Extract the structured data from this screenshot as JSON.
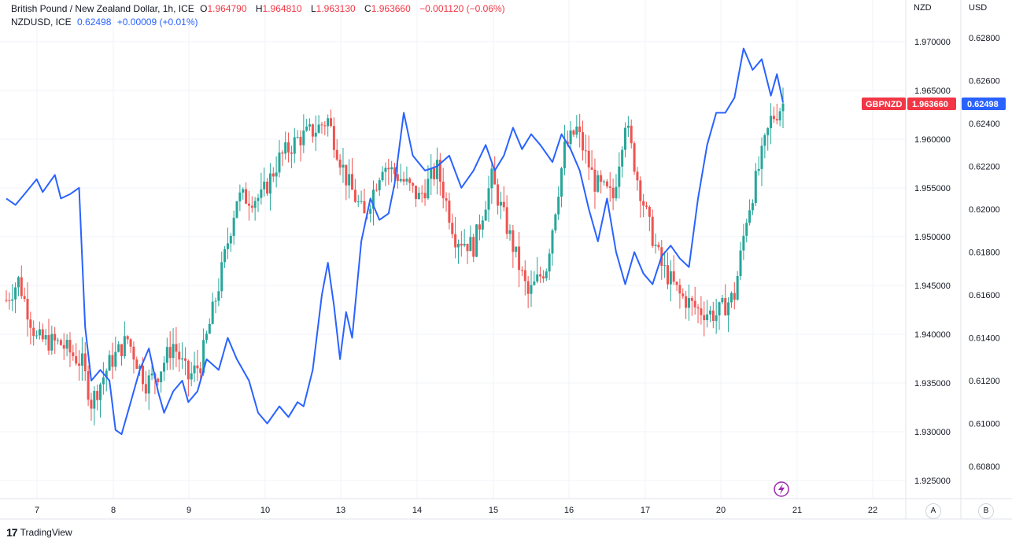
{
  "legend": {
    "main_title": "British Pound / New Zealand Dollar, 1h, ICE",
    "o_label": "O",
    "o_value": "1.964790",
    "h_label": "H",
    "h_value": "1.964810",
    "l_label": "L",
    "l_value": "1.963130",
    "c_label": "C",
    "c_value": "1.963660",
    "change": "−0.001120 (−0.06%)",
    "compare_title": "NZDUSD, ICE",
    "compare_value": "0.62498",
    "compare_change": "+0.00009 (+0.01%)"
  },
  "axes": {
    "left_axis_title": "NZD",
    "right_axis_title": "USD",
    "btn_a": "A",
    "btn_b": "B"
  },
  "badges": {
    "gbpnzd_label": "GBPNZD",
    "gbpnzd_value": "1.963660",
    "nzdusd_value": "0.62498"
  },
  "footer": {
    "brand": "TradingView",
    "logo_icon": "tradingview-logo-icon"
  },
  "colors": {
    "up": "#26a69a",
    "down": "#ef5350",
    "compare": "#2962ff",
    "badge_red": "#f23645",
    "grid": "#f0f3fa"
  },
  "chart_data": {
    "type": "candlestick+line",
    "x_ticks": [
      "7",
      "8",
      "9",
      "10",
      "13",
      "14",
      "15",
      "16",
      "17",
      "20",
      "21",
      "22"
    ],
    "nzd_axis": {
      "ticks": [
        "1.970000",
        "1.965000",
        "1.960000",
        "1.955000",
        "1.950000",
        "1.945000",
        "1.940000",
        "1.935000",
        "1.930000",
        "1.925000"
      ],
      "range": [
        1.9235,
        1.9715
      ]
    },
    "usd_axis": {
      "ticks": [
        "0.62800",
        "0.62600",
        "0.62400",
        "0.62200",
        "0.62000",
        "0.61800",
        "0.61600",
        "0.61400",
        "0.61200",
        "0.61000",
        "0.60800"
      ],
      "range": [
        0.6075,
        0.6286
      ]
    },
    "series": [
      {
        "name": "GBPNZD",
        "kind": "candles",
        "anchors": [
          [
            0,
            1.9435
          ],
          [
            4,
            1.9455
          ],
          [
            10,
            1.9395
          ],
          [
            18,
            1.939
          ],
          [
            25,
            1.937
          ],
          [
            28,
            1.933
          ],
          [
            34,
            1.937
          ],
          [
            40,
            1.9395
          ],
          [
            46,
            1.935
          ],
          [
            50,
            1.936
          ],
          [
            55,
            1.939
          ],
          [
            60,
            1.9355
          ],
          [
            64,
            1.937
          ],
          [
            70,
            1.945
          ],
          [
            76,
            1.954
          ],
          [
            84,
            1.954
          ],
          [
            90,
            1.958
          ],
          [
            96,
            1.96
          ],
          [
            102,
            1.961
          ],
          [
            106,
            1.962
          ],
          [
            112,
            1.956
          ],
          [
            118,
            1.952
          ],
          [
            124,
            1.9575
          ],
          [
            130,
            1.956
          ],
          [
            136,
            1.954
          ],
          [
            142,
            1.957
          ],
          [
            148,
            1.95
          ],
          [
            154,
            1.949
          ],
          [
            160,
            1.956
          ],
          [
            166,
            1.95
          ],
          [
            172,
            1.944
          ],
          [
            178,
            1.947
          ],
          [
            184,
            1.959
          ],
          [
            188,
            1.961
          ],
          [
            194,
            1.9555
          ],
          [
            200,
            1.954
          ],
          [
            204,
            1.962
          ],
          [
            208,
            1.956
          ],
          [
            212,
            1.951
          ],
          [
            216,
            1.947
          ],
          [
            222,
            1.944
          ],
          [
            228,
            1.9425
          ],
          [
            234,
            1.942
          ],
          [
            240,
            1.944
          ],
          [
            244,
            1.952
          ],
          [
            248,
            1.957
          ],
          [
            252,
            1.962
          ],
          [
            256,
            1.9636
          ]
        ],
        "last_close": 1.96366
      },
      {
        "name": "NZDUSD",
        "kind": "line",
        "points": [
          [
            0,
            0.6205
          ],
          [
            3,
            0.6202
          ],
          [
            6,
            0.6207
          ],
          [
            10,
            0.6214
          ],
          [
            12,
            0.6208
          ],
          [
            16,
            0.6216
          ],
          [
            18,
            0.6205
          ],
          [
            21,
            0.6207
          ],
          [
            24,
            0.621
          ],
          [
            26,
            0.6145
          ],
          [
            28,
            0.612
          ],
          [
            31,
            0.6125
          ],
          [
            34,
            0.612
          ],
          [
            36,
            0.6097
          ],
          [
            38,
            0.6095
          ],
          [
            41,
            0.611
          ],
          [
            44,
            0.6125
          ],
          [
            47,
            0.6135
          ],
          [
            50,
            0.6115
          ],
          [
            52,
            0.6105
          ],
          [
            55,
            0.6115
          ],
          [
            58,
            0.612
          ],
          [
            60,
            0.611
          ],
          [
            63,
            0.6115
          ],
          [
            66,
            0.613
          ],
          [
            70,
            0.6125
          ],
          [
            73,
            0.614
          ],
          [
            76,
            0.613
          ],
          [
            80,
            0.612
          ],
          [
            83,
            0.6105
          ],
          [
            86,
            0.61
          ],
          [
            90,
            0.6108
          ],
          [
            93,
            0.6103
          ],
          [
            96,
            0.611
          ],
          [
            98,
            0.6108
          ],
          [
            101,
            0.6125
          ],
          [
            104,
            0.616
          ],
          [
            106,
            0.6175
          ],
          [
            108,
            0.6155
          ],
          [
            110,
            0.613
          ],
          [
            112,
            0.6152
          ],
          [
            114,
            0.614
          ],
          [
            117,
            0.6185
          ],
          [
            120,
            0.6205
          ],
          [
            123,
            0.6195
          ],
          [
            126,
            0.6198
          ],
          [
            128,
            0.6212
          ],
          [
            131,
            0.6245
          ],
          [
            134,
            0.6225
          ],
          [
            138,
            0.6218
          ],
          [
            142,
            0.622
          ],
          [
            146,
            0.6225
          ],
          [
            150,
            0.621
          ],
          [
            154,
            0.6218
          ],
          [
            158,
            0.623
          ],
          [
            161,
            0.6218
          ],
          [
            164,
            0.6225
          ],
          [
            167,
            0.6238
          ],
          [
            170,
            0.6228
          ],
          [
            173,
            0.6235
          ],
          [
            176,
            0.623
          ],
          [
            180,
            0.6222
          ],
          [
            183,
            0.6235
          ],
          [
            186,
            0.6228
          ],
          [
            189,
            0.6218
          ],
          [
            192,
            0.62
          ],
          [
            195,
            0.6185
          ],
          [
            198,
            0.6205
          ],
          [
            201,
            0.618
          ],
          [
            204,
            0.6165
          ],
          [
            207,
            0.618
          ],
          [
            210,
            0.617
          ],
          [
            213,
            0.6165
          ],
          [
            216,
            0.6178
          ],
          [
            219,
            0.6183
          ],
          [
            222,
            0.6177
          ],
          [
            225,
            0.6173
          ],
          [
            228,
            0.6205
          ],
          [
            231,
            0.623
          ],
          [
            234,
            0.6245
          ],
          [
            237,
            0.6245
          ],
          [
            240,
            0.6252
          ],
          [
            243,
            0.6275
          ],
          [
            246,
            0.6265
          ],
          [
            249,
            0.627
          ],
          [
            252,
            0.6253
          ],
          [
            254,
            0.6263
          ],
          [
            256,
            0.62498
          ]
        ],
        "last_value": 0.62498
      }
    ]
  }
}
